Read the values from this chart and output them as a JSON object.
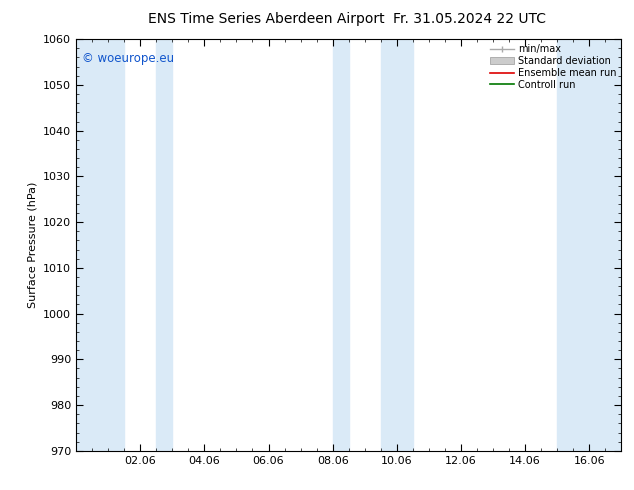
{
  "title_left": "ENS Time Series Aberdeen Airport",
  "title_right": "Fr. 31.05.2024 22 UTC",
  "ylabel": "Surface Pressure (hPa)",
  "ylim": [
    970,
    1060
  ],
  "yticks": [
    970,
    980,
    990,
    1000,
    1010,
    1020,
    1030,
    1040,
    1050,
    1060
  ],
  "xtick_labels": [
    "02.06",
    "04.06",
    "06.06",
    "08.06",
    "10.06",
    "12.06",
    "14.06",
    "16.06"
  ],
  "xtick_positions": [
    2,
    4,
    6,
    8,
    10,
    12,
    14,
    16
  ],
  "xlim": [
    0,
    17
  ],
  "band_color": "#daeaf7",
  "bg_color": "#ffffff",
  "plot_bg_color": "#ffffff",
  "watermark": "© woeurope.eu",
  "watermark_color": "#1155cc",
  "title_fontsize": 10,
  "ylabel_fontsize": 8,
  "tick_fontsize": 8,
  "band_ranges": [
    [
      0,
      1.5
    ],
    [
      2.5,
      3.0
    ],
    [
      8.0,
      8.5
    ],
    [
      9.5,
      10.5
    ],
    [
      15.0,
      17
    ]
  ],
  "legend_entries": [
    {
      "label": "min/max",
      "type": "line",
      "color": "#aaaaaa"
    },
    {
      "label": "Standard deviation",
      "type": "box",
      "color": "#cccccc"
    },
    {
      "label": "Ensemble mean run",
      "type": "line",
      "color": "#dd0000"
    },
    {
      "label": "Controll run",
      "type": "line",
      "color": "#007700"
    }
  ]
}
